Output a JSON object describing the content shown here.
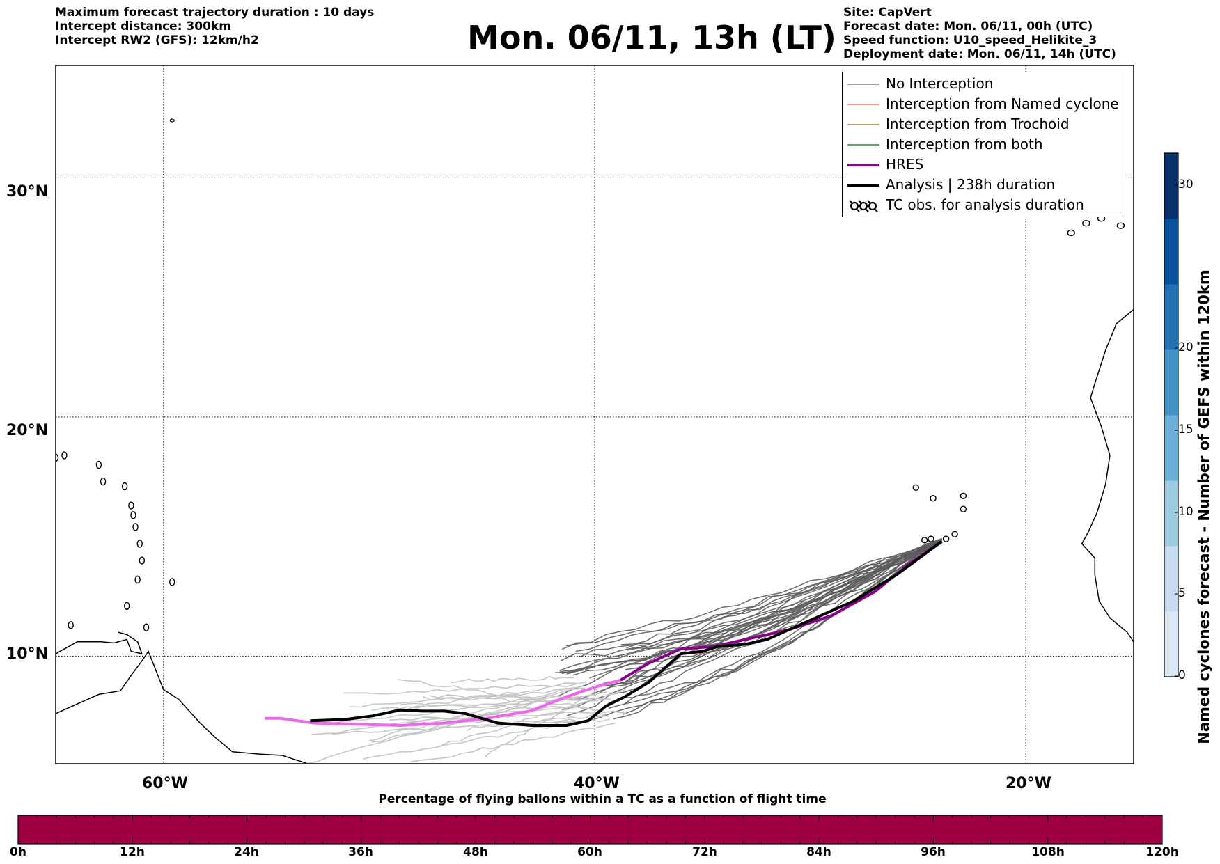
{
  "header": {
    "left_lines": [
      "Maximum forecast trajectory duration : 10 days",
      "Intercept distance: 300km",
      "Intercept RW2 (GFS):  12km/h2"
    ],
    "title": "Mon. 06/11, 13h (LT)",
    "right_lines": [
      "Site: CapVert",
      "Forecast date: Mon. 06/11, 00h (UTC)",
      "Speed function: U10_speed_Helikite_3",
      "Deployment date: Mon. 06/11, 14h (UTC)"
    ]
  },
  "map": {
    "lon_range": [
      -65,
      -15
    ],
    "lat_range": [
      5.5,
      34.7
    ],
    "lon_ticks": [
      "60°W",
      "40°W",
      "20°W"
    ],
    "lat_ticks": [
      "30°N",
      "20°N",
      "10°N"
    ],
    "grid": "dotted"
  },
  "legend": {
    "items": [
      {
        "label": "No Interception",
        "color": "#808080",
        "style": "thin-line"
      },
      {
        "label": "Interception from Named cyclone",
        "color": "#ff7f50",
        "style": "thin-line"
      },
      {
        "label": "Interception from Trochoid",
        "color": "#9a8a3a",
        "style": "thin-line"
      },
      {
        "label": "Interception from both",
        "color": "#2e8b2e",
        "style": "thin-line"
      },
      {
        "label": "HRES",
        "color": "#8b008b",
        "style": "thick-line"
      },
      {
        "label": "Analysis | 238h duration",
        "color": "#000000",
        "style": "thick-line"
      },
      {
        "label": "TC obs. for analysis duration",
        "color": "#000000",
        "style": "tc-symbol"
      }
    ]
  },
  "colorbar_right": {
    "title": "Named cyclones forecast - Number of GEFS within 120km",
    "ticks": [
      "30",
      "20",
      "15",
      "10",
      "5",
      "0"
    ],
    "colors": [
      "#dae8f5",
      "#c6dbef",
      "#9ecae1",
      "#6baed6",
      "#4292c6",
      "#2171b5",
      "#08519c",
      "#08306b"
    ]
  },
  "colorbar_bottom": {
    "title": "Percentage of flying ballons within a TC as a function of flight time",
    "ticks": [
      "0h",
      "12h",
      "24h",
      "36h",
      "48h",
      "60h",
      "72h",
      "84h",
      "96h",
      "108h",
      "120h"
    ],
    "fill_color": "#9e0142"
  },
  "trajectories": {
    "start": [
      -23.9,
      14.8
    ],
    "analysis": [
      [
        -23.9,
        14.8
      ],
      [
        -26,
        13.4
      ],
      [
        -28,
        12.3
      ],
      [
        -30,
        11.5
      ],
      [
        -32,
        10.7
      ],
      [
        -33,
        10.5
      ],
      [
        -34.3,
        10.4
      ],
      [
        -35,
        10.2
      ],
      [
        -36,
        10.1
      ],
      [
        -36.5,
        9.7
      ],
      [
        -37.5,
        8.9
      ],
      [
        -38.6,
        8.3
      ],
      [
        -39.5,
        7.9
      ],
      [
        -40.3,
        7.3
      ],
      [
        -41.3,
        7.1
      ],
      [
        -42.9,
        7.1
      ],
      [
        -44.5,
        7.2
      ],
      [
        -46,
        7.6
      ],
      [
        -47,
        7.7
      ],
      [
        -48,
        7.7
      ],
      [
        -49,
        7.75
      ],
      [
        -50.3,
        7.5
      ],
      [
        -51.6,
        7.35
      ],
      [
        -53.2,
        7.3
      ]
    ],
    "hres": [
      [
        -23.9,
        14.8
      ],
      [
        -25.5,
        13.8
      ],
      [
        -27,
        12.7
      ],
      [
        -29,
        11.7
      ],
      [
        -31,
        11.1
      ],
      [
        -33,
        10.7
      ],
      [
        -34.5,
        10.4
      ],
      [
        -36,
        10.3
      ],
      [
        -37.5,
        9.7
      ],
      [
        -38.8,
        9.0
      ],
      [
        -40,
        8.7
      ],
      [
        -41.3,
        8.3
      ],
      [
        -43,
        7.7
      ],
      [
        -45,
        7.4
      ],
      [
        -47,
        7.2
      ],
      [
        -49,
        7.1
      ],
      [
        -51,
        7.15
      ],
      [
        -53,
        7.2
      ],
      [
        -54.6,
        7.4
      ],
      [
        -55.3,
        7.4
      ]
    ]
  }
}
